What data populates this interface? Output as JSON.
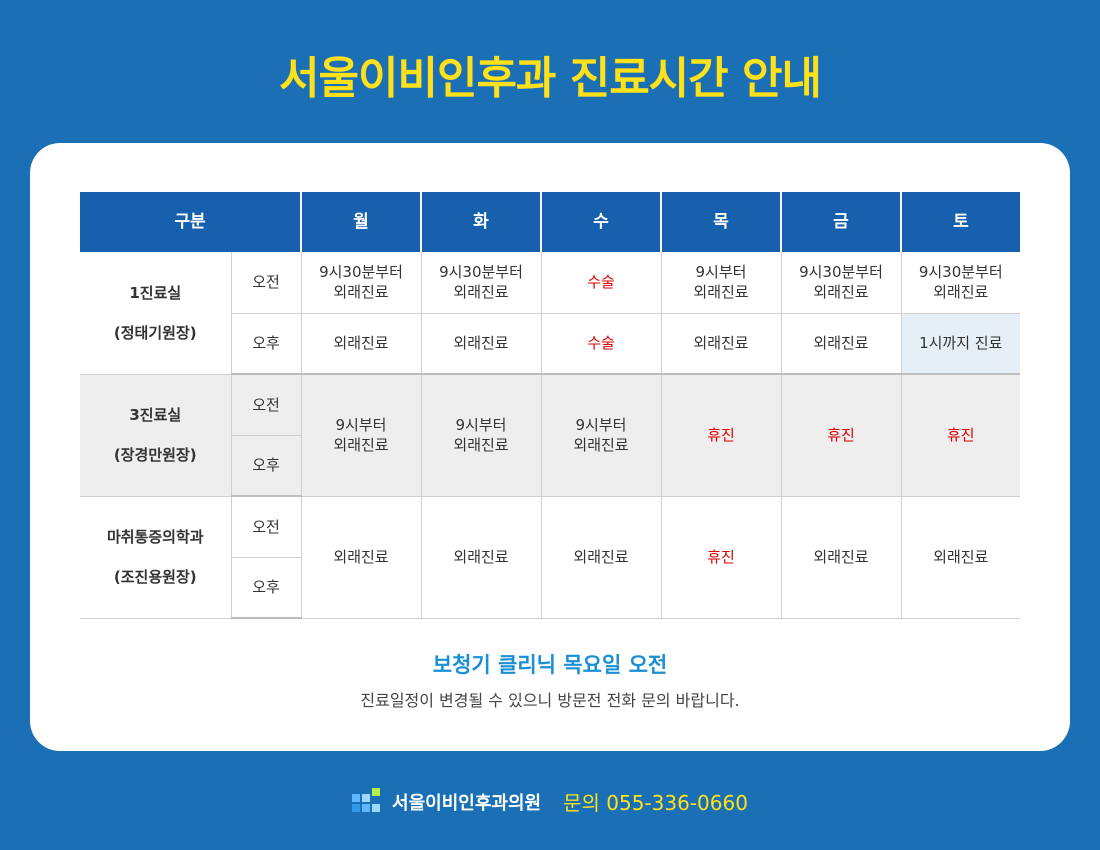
{
  "title": "서울이비인후과 진료시간 안내",
  "table": {
    "header": {
      "category": "구분",
      "days": [
        "월",
        "화",
        "수",
        "목",
        "금",
        "토"
      ]
    },
    "rooms": [
      {
        "name_line1": "1진료실",
        "name_line2": "(정태기원장)",
        "am_label": "오전",
        "pm_label": "오후",
        "am": [
          "9시30분부터\n외래진료",
          "9시30분부터\n외래진료",
          "수술",
          "9시부터\n외래진료",
          "9시30분부터\n외래진료",
          "9시30분부터\n외래진료"
        ],
        "pm": [
          "외래진료",
          "외래진료",
          "수술",
          "외래진료",
          "외래진료",
          "1시까지 진료"
        ]
      },
      {
        "name_line1": "3진료실",
        "name_line2": "(장경만원장)",
        "am_label": "오전",
        "pm_label": "오후",
        "all": [
          "9시부터\n외래진료",
          "9시부터\n외래진료",
          "9시부터\n외래진료",
          "휴진",
          "휴진",
          "휴진"
        ]
      },
      {
        "name_line1": "마취통증의학과",
        "name_line2": "(조진용원장)",
        "am_label": "오전",
        "pm_label": "오후",
        "all": [
          "외래진료",
          "외래진료",
          "외래진료",
          "휴진",
          "외래진료",
          "외래진료"
        ]
      }
    ]
  },
  "note": {
    "title": "보청기 클리닉 목요일 오전",
    "subtitle": "진료일정이 변경될 수 있으니 방문전 전화 문의 바랍니다."
  },
  "footer": {
    "clinic_name": "서울이비인후과의원",
    "contact": "문의 055-336-0660"
  },
  "colors": {
    "background": "#1a6fb5",
    "title": "#ffe11a",
    "header": "#1660ad",
    "closed_text": "#e00000",
    "note_title": "#1a8fd6"
  }
}
